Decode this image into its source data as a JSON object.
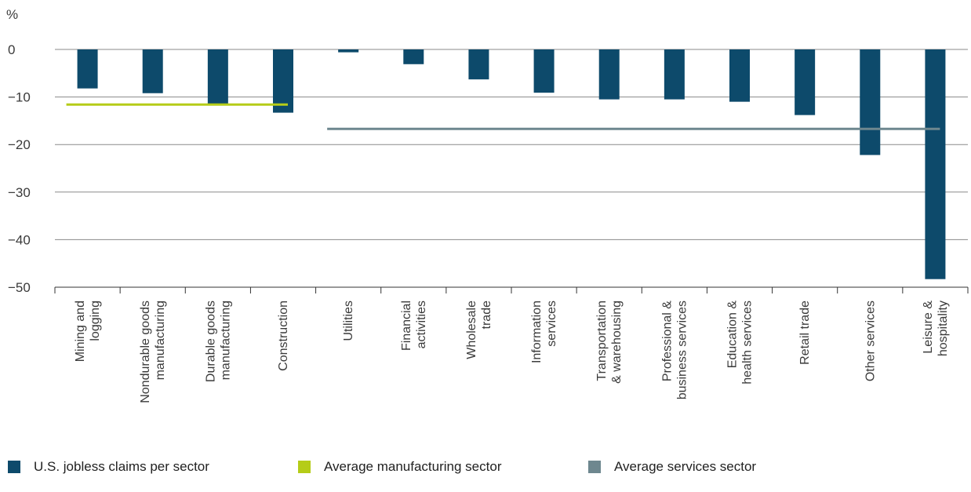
{
  "chart_data": {
    "type": "bar",
    "y_unit_label": "%",
    "ylim": [
      -50,
      0
    ],
    "yticks": [
      0,
      -10,
      -20,
      -30,
      -40,
      -50
    ],
    "ytick_labels": [
      "0",
      "−10",
      "−20",
      "−30",
      "−40",
      "−50"
    ],
    "grid": true,
    "categories": [
      [
        "Mining and",
        "logging"
      ],
      [
        "Nondurable goods",
        "manufacturing"
      ],
      [
        "Durable goods",
        "manufacturing"
      ],
      [
        "Construction"
      ],
      [
        "Utilities"
      ],
      [
        "Financial",
        "activities"
      ],
      [
        "Wholesale",
        "trade"
      ],
      [
        "Information",
        "services"
      ],
      [
        "Transportation",
        "& warehousing"
      ],
      [
        "Professional &",
        "business services"
      ],
      [
        "Education &",
        "health services"
      ],
      [
        "Retail trade"
      ],
      [
        "Other services"
      ],
      [
        "Leisure &",
        "hospitality"
      ]
    ],
    "series": [
      {
        "name": "U.S. jobless claims per sector",
        "color": "#0d4a6b",
        "values": [
          -8.2,
          -9.2,
          -11.6,
          -13.3,
          -0.6,
          -3.1,
          -6.3,
          -9.1,
          -10.5,
          -10.5,
          -11.0,
          -13.8,
          -22.2,
          -48.3
        ]
      }
    ],
    "reference_lines": [
      {
        "name": "Average manufacturing sector",
        "color": "#b5cc18",
        "value": -11.6,
        "from_category": 0,
        "to_category": 3
      },
      {
        "name": "Average services sector",
        "color": "#6e878f",
        "value": -16.7,
        "from_category": 4,
        "to_category": 13
      }
    ],
    "legend_position": "bottom-left"
  }
}
